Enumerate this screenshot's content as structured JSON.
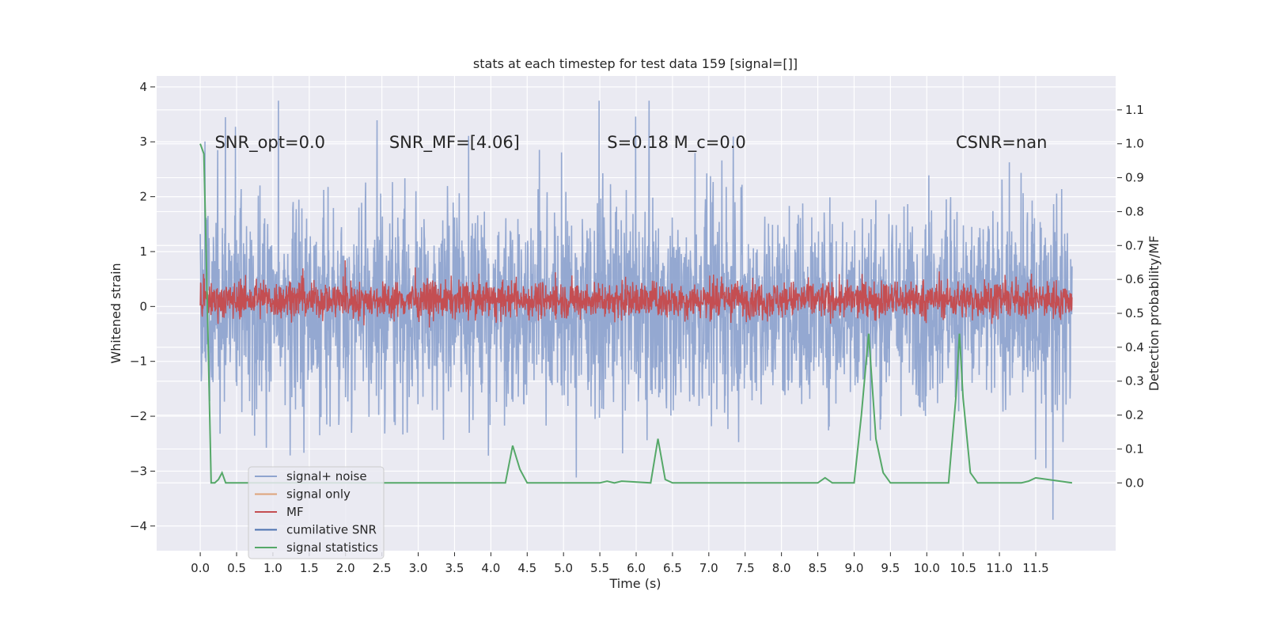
{
  "chart_data": {
    "type": "line",
    "title": "stats at each timestep for test data 159 [signal=[]]",
    "xlabel": "Time (s)",
    "ylabel_left": "Whitened strain",
    "ylabel_right": "Detection probability/MF",
    "xlim": [
      -0.6,
      12.6
    ],
    "ylim_left": [
      -4.45,
      4.2
    ],
    "ylim_right": [
      -0.2,
      1.2
    ],
    "x_ticks": [
      "0.0",
      "0.5",
      "1.0",
      "1.5",
      "2.0",
      "2.5",
      "3.0",
      "3.5",
      "4.0",
      "4.5",
      "5.0",
      "5.5",
      "6.0",
      "6.5",
      "7.0",
      "7.5",
      "8.0",
      "8.5",
      "9.0",
      "9.5",
      "10.0",
      "10.5",
      "11.0",
      "11.5"
    ],
    "y_ticks_left": [
      "−4",
      "−3",
      "−2",
      "−1",
      "0",
      "1",
      "2",
      "3",
      "4"
    ],
    "y_ticks_right": [
      "0.0",
      "0.1",
      "0.2",
      "0.3",
      "0.4",
      "0.5",
      "0.6",
      "0.7",
      "0.8",
      "0.9",
      "1.0",
      "1.1"
    ],
    "grid": true,
    "legend_position": "lower-left",
    "annotations": [
      {
        "text": "SNR_opt=0.0",
        "x": 0.2
      },
      {
        "text": "SNR_MF=[4.06]",
        "x": 2.6
      },
      {
        "text": "S=0.18   M_c=0.0",
        "x": 5.6
      },
      {
        "text": "CSNR=nan",
        "x": 10.4
      }
    ],
    "legend": [
      {
        "label": "signal+ noise",
        "color": "#8fa4cf"
      },
      {
        "label": "signal only",
        "color": "#dda37a"
      },
      {
        "label": "MF",
        "color": "#c44e52"
      },
      {
        "label": "cumilative SNR",
        "color": "#4c72b0"
      },
      {
        "label": "signal statistics",
        "color": "#55a868"
      }
    ],
    "series": [
      {
        "name": "signal+ noise",
        "axis": "left",
        "color": "#8fa4cf",
        "description": "whitened noise, approx Gaussian with std ~1, range -4..4, t=0..12"
      },
      {
        "name": "MF",
        "axis": "left",
        "color": "#c44e52",
        "description": "matched filter output, approx -0.4..0.7 around 0, t=0..12"
      },
      {
        "name": "signal statistics",
        "axis": "right",
        "color": "#55a868",
        "x": [
          0.0,
          0.05,
          0.1,
          0.15,
          0.2,
          0.25,
          0.3,
          0.35,
          0.4,
          4.2,
          4.3,
          4.4,
          4.5,
          5.5,
          5.6,
          5.7,
          5.8,
          6.2,
          6.3,
          6.4,
          6.5,
          8.5,
          8.6,
          8.7,
          9.0,
          9.1,
          9.2,
          9.3,
          9.4,
          9.5,
          10.3,
          10.4,
          10.45,
          10.5,
          10.6,
          10.7,
          11.3,
          11.4,
          11.5,
          12.0
        ],
        "y": [
          1.0,
          0.97,
          0.5,
          0.0,
          0.0,
          0.01,
          0.03,
          0.0,
          0.0,
          0.0,
          0.11,
          0.04,
          0.0,
          0.0,
          0.005,
          0.0,
          0.005,
          0.0,
          0.13,
          0.01,
          0.0,
          0.0,
          0.015,
          0.0,
          0.0,
          0.2,
          0.44,
          0.13,
          0.03,
          0.0,
          0.0,
          0.25,
          0.44,
          0.25,
          0.03,
          0.0,
          0.0,
          0.005,
          0.015,
          0.0
        ]
      }
    ]
  }
}
